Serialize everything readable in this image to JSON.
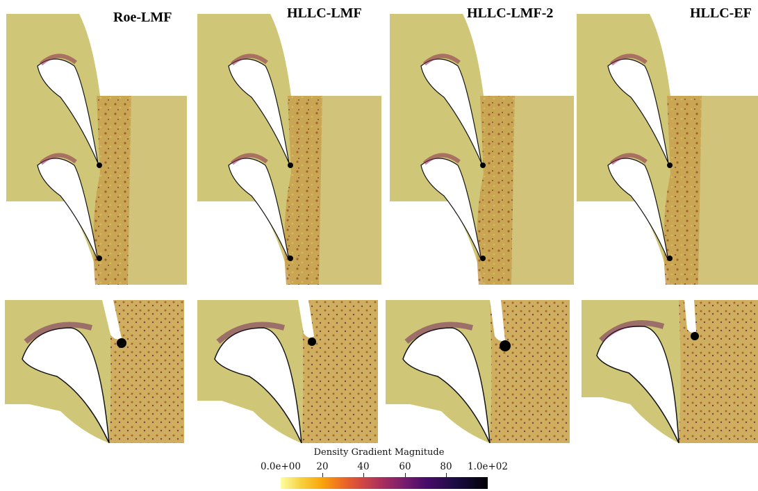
{
  "titles": [
    "Roe-LMF",
    "HLLC-LMF",
    "HLLC-LMF-2",
    "HLLC-EF"
  ],
  "colorbar": {
    "title": "Density Gradient Magnitude",
    "ticks": [
      "0.0e+00",
      "20",
      "40",
      "60",
      "80",
      "1.0e+02"
    ],
    "range": [
      0,
      100
    ],
    "colormap": "inferno"
  },
  "colors": {
    "background_field": "#cfc777",
    "wake": "#b86a22",
    "blade": "#ffffff",
    "blade_edge": "#111111"
  }
}
